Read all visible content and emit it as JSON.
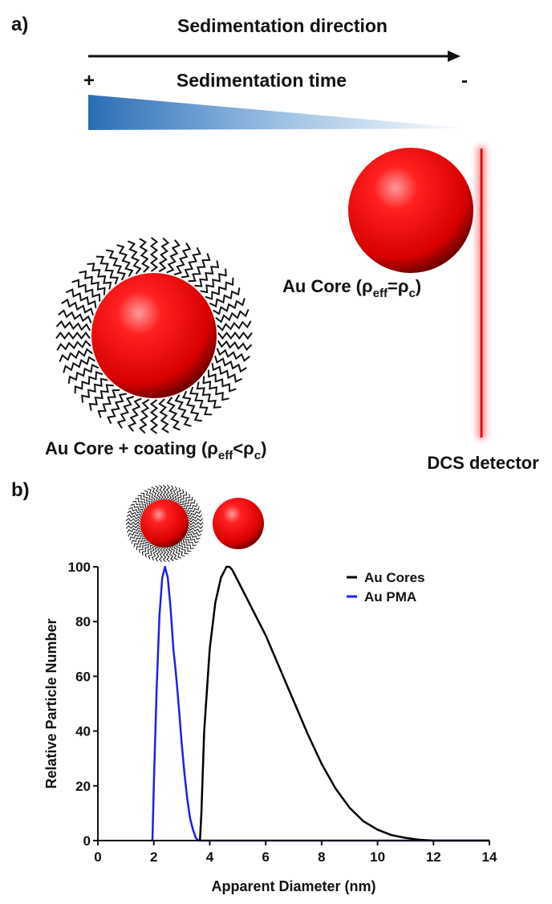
{
  "panel_a": {
    "label": "a)",
    "direction": "Sedimentation direction",
    "plus": "+",
    "time": "Sedimentation time",
    "minus": "-",
    "core_label": [
      "Au Core (ρ",
      "eff",
      "=ρ",
      "c",
      ")"
    ],
    "coated_label": [
      "Au Core + coating (ρ",
      "eff",
      "<ρ",
      "c",
      ")"
    ],
    "detector": "DCS detector"
  },
  "chart_data": {
    "type": "line",
    "panel_label": "b)",
    "x_label": "Apparent Diameter (nm)",
    "y_label": "Relative Particle Number",
    "xlim": [
      0,
      14
    ],
    "ylim": [
      0,
      100
    ],
    "xticks": [
      0,
      2,
      4,
      6,
      8,
      10,
      12,
      14
    ],
    "yticks": [
      0,
      20,
      40,
      60,
      80,
      100
    ],
    "legend": "top-right",
    "series": [
      {
        "name": "Au Cores",
        "color": "#000000",
        "x": [
          3.65,
          3.7,
          3.8,
          4.0,
          4.2,
          4.4,
          4.6,
          4.7,
          4.8,
          5.0,
          5.5,
          6.0,
          6.5,
          7.0,
          7.5,
          8.0,
          8.5,
          9.0,
          9.5,
          10,
          10.5,
          11,
          11.5,
          12,
          12.5,
          14
        ],
        "values": [
          0,
          10,
          40,
          70,
          87,
          96,
          100,
          100,
          99,
          95,
          85,
          75,
          63,
          51,
          39,
          28,
          19,
          12,
          7,
          4,
          2,
          1,
          0.3,
          0,
          0,
          0
        ]
      },
      {
        "name": "Au PMA",
        "color": "#1f1fe6",
        "x": [
          1.9,
          1.95,
          2.0,
          2.1,
          2.2,
          2.3,
          2.4,
          2.5,
          2.6,
          2.7,
          2.8,
          2.9,
          3.0,
          3.1,
          3.2,
          3.3,
          3.4,
          3.5,
          3.6,
          3.7,
          14
        ],
        "values": [
          0,
          0,
          20,
          55,
          82,
          96,
          100,
          96,
          85,
          70,
          60,
          48,
          35,
          24,
          15,
          8,
          4,
          1,
          0,
          0,
          0
        ]
      }
    ]
  }
}
